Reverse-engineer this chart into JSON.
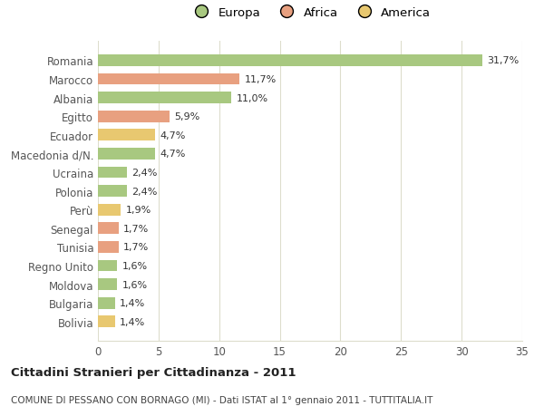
{
  "categories": [
    "Bolivia",
    "Bulgaria",
    "Moldova",
    "Regno Unito",
    "Tunisia",
    "Senegal",
    "Perù",
    "Polonia",
    "Ucraina",
    "Macedonia d/N.",
    "Ecuador",
    "Egitto",
    "Albania",
    "Marocco",
    "Romania"
  ],
  "values": [
    1.4,
    1.4,
    1.6,
    1.6,
    1.7,
    1.7,
    1.9,
    2.4,
    2.4,
    4.7,
    4.7,
    5.9,
    11.0,
    11.7,
    31.7
  ],
  "labels": [
    "1,4%",
    "1,4%",
    "1,6%",
    "1,6%",
    "1,7%",
    "1,7%",
    "1,9%",
    "2,4%",
    "2,4%",
    "4,7%",
    "4,7%",
    "5,9%",
    "11,0%",
    "11,7%",
    "31,7%"
  ],
  "colors": [
    "#e8c870",
    "#a8c880",
    "#a8c880",
    "#a8c880",
    "#e8a080",
    "#e8a080",
    "#e8c870",
    "#a8c880",
    "#a8c880",
    "#a8c880",
    "#e8c870",
    "#e8a080",
    "#a8c880",
    "#e8a080",
    "#a8c880"
  ],
  "legend": [
    {
      "label": "Europa",
      "color": "#a8c880"
    },
    {
      "label": "Africa",
      "color": "#e8a080"
    },
    {
      "label": "America",
      "color": "#e8c870"
    }
  ],
  "xlim": [
    0,
    35
  ],
  "xticks": [
    0,
    5,
    10,
    15,
    20,
    25,
    30,
    35
  ],
  "title": "Cittadini Stranieri per Cittadinanza - 2011",
  "subtitle": "COMUNE DI PESSANO CON BORNAGO (MI) - Dati ISTAT al 1° gennaio 2011 - TUTTITALIA.IT",
  "background_color": "#ffffff",
  "plot_background": "#ffffff",
  "grid_color": "#ddddcc"
}
